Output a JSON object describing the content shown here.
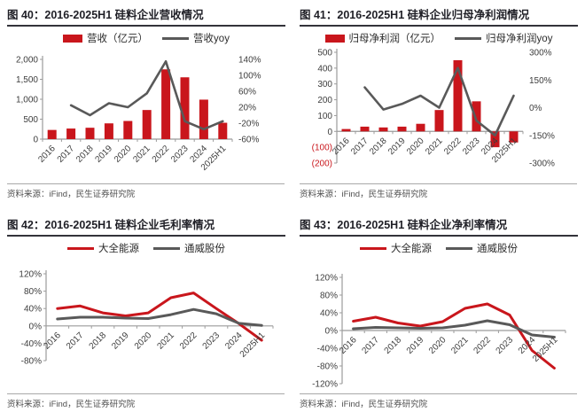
{
  "page": {
    "background": "#ffffff",
    "accent_red": "#c9161c",
    "line_gray": "#595959",
    "title_color": "#1f1f26",
    "axis_color": "#9b9b9b",
    "tick_text_color": "#3d3d3d"
  },
  "chart_data": [
    {
      "type": "bar",
      "subtype": "bar+line-combo",
      "figure_label": "图 40：",
      "title": "2016-2025H1 硅料企业营收情况",
      "source": "资料来源：iFind，民生证券研究院",
      "categories": [
        "2016",
        "2017",
        "2018",
        "2019",
        "2020",
        "2021",
        "2022",
        "2023",
        "2024",
        "2025H1"
      ],
      "bars": {
        "name": "营收（亿元）",
        "color": "#c9161c",
        "axis": "left",
        "values": [
          230,
          265,
          285,
          395,
          455,
          730,
          1750,
          1550,
          990,
          410
        ]
      },
      "line": {
        "name": "营收yoy",
        "color": "#595959",
        "axis": "right",
        "values_pct": [
          null,
          25,
          0,
          30,
          20,
          55,
          135,
          -15,
          -35,
          -15
        ]
      },
      "left_axis": {
        "min": 0,
        "max": 2000,
        "ticks": [
          {
            "v": 2000,
            "label": "2,000"
          },
          {
            "v": 1500,
            "label": "1,500"
          },
          {
            "v": 1000,
            "label": "1,000"
          },
          {
            "v": 500,
            "label": "500"
          },
          {
            "v": 0,
            "label": "0"
          }
        ]
      },
      "right_axis": {
        "min": -60,
        "max": 140,
        "ticks": [
          {
            "v": 140,
            "label": "140%"
          },
          {
            "v": 100,
            "label": "100%"
          },
          {
            "v": 60,
            "label": "60%"
          },
          {
            "v": 20,
            "label": "20%"
          },
          {
            "v": -20,
            "label": "-20%"
          },
          {
            "v": -60,
            "label": "-60%"
          }
        ]
      },
      "legend_position": "top",
      "grid": false
    },
    {
      "type": "bar",
      "subtype": "bar+line-combo",
      "figure_label": "图 41：",
      "title": "2016-2025H1 硅料企业归母净利润情况",
      "source": "资料来源：iFind，民生证券研究院",
      "categories": [
        "2016",
        "2017",
        "2018",
        "2019",
        "2020",
        "2021",
        "2022",
        "2023",
        "2024",
        "2025H1"
      ],
      "bars": {
        "name": "归母净利润（亿元）",
        "color": "#c9161c",
        "axis": "left",
        "values": [
          15,
          30,
          25,
          30,
          48,
          135,
          450,
          190,
          -100,
          -70
        ]
      },
      "line": {
        "name": "归母净利润yoy",
        "color": "#595959",
        "axis": "right",
        "values_pct": [
          null,
          110,
          -10,
          20,
          65,
          0,
          215,
          -70,
          -150,
          65
        ]
      },
      "left_axis": {
        "min": -200,
        "max": 500,
        "ticks": [
          {
            "v": 500,
            "label": "500"
          },
          {
            "v": 400,
            "label": "400"
          },
          {
            "v": 300,
            "label": "300"
          },
          {
            "v": 200,
            "label": "200"
          },
          {
            "v": 100,
            "label": "100"
          },
          {
            "v": 0,
            "label": "0"
          },
          {
            "v": -100,
            "label": "(100)",
            "color": "#c9161c"
          },
          {
            "v": -200,
            "label": "(200)",
            "color": "#c9161c"
          }
        ]
      },
      "right_axis": {
        "min": -300,
        "max": 300,
        "ticks": [
          {
            "v": 300,
            "label": "300%"
          },
          {
            "v": 150,
            "label": "150%"
          },
          {
            "v": 0,
            "label": "0%"
          },
          {
            "v": -150,
            "label": "-150%"
          },
          {
            "v": -300,
            "label": "-300%"
          }
        ]
      },
      "legend_position": "top",
      "grid": false
    },
    {
      "type": "line",
      "figure_label": "图 42：",
      "title": "2016-2025H1 硅料企业毛利率情况",
      "source": "资料来源：iFind，民生证券研究院",
      "categories": [
        "2016",
        "2017",
        "2018",
        "2019",
        "2020",
        "2021",
        "2022",
        "2023",
        "2024",
        "2025H1"
      ],
      "series": [
        {
          "name": "大全能源",
          "color": "#c9161c",
          "values_pct": [
            40,
            46,
            30,
            23,
            30,
            65,
            76,
            40,
            5,
            -33
          ]
        },
        {
          "name": "通威股份",
          "color": "#595959",
          "values_pct": [
            16,
            20,
            20,
            18,
            17,
            26,
            38,
            28,
            6,
            1
          ]
        }
      ],
      "left_axis": {
        "min": -80,
        "max": 120,
        "ticks": [
          {
            "v": 120,
            "label": "120%"
          },
          {
            "v": 80,
            "label": "80%"
          },
          {
            "v": 40,
            "label": "40%"
          },
          {
            "v": 0,
            "label": "0%"
          },
          {
            "v": -40,
            "label": "-40%"
          },
          {
            "v": -80,
            "label": "-80%"
          }
        ]
      },
      "legend_position": "top",
      "grid": false
    },
    {
      "type": "line",
      "figure_label": "图 43：",
      "title": "2016-2025H1 硅料企业净利率情况",
      "source": "资料来源：iFind，民生证券研究院",
      "categories": [
        "2016",
        "2017",
        "2018",
        "2019",
        "2020",
        "2021",
        "2022",
        "2023",
        "2024",
        "2025H1"
      ],
      "series": [
        {
          "name": "大全能源",
          "color": "#c9161c",
          "values_pct": [
            21,
            30,
            17,
            10,
            20,
            50,
            60,
            35,
            -45,
            -85
          ]
        },
        {
          "name": "通威股份",
          "color": "#595959",
          "values_pct": [
            4,
            7,
            6,
            5,
            6,
            12,
            22,
            13,
            -10,
            -15
          ]
        }
      ],
      "left_axis": {
        "min": -120,
        "max": 120,
        "ticks": [
          {
            "v": 120,
            "label": "120%"
          },
          {
            "v": 80,
            "label": "80%"
          },
          {
            "v": 40,
            "label": "40%"
          },
          {
            "v": 0,
            "label": "0%"
          },
          {
            "v": -40,
            "label": "-40%"
          },
          {
            "v": -80,
            "label": "-80%"
          },
          {
            "v": -120,
            "label": "-120%"
          }
        ]
      },
      "legend_position": "top",
      "grid": false
    }
  ]
}
